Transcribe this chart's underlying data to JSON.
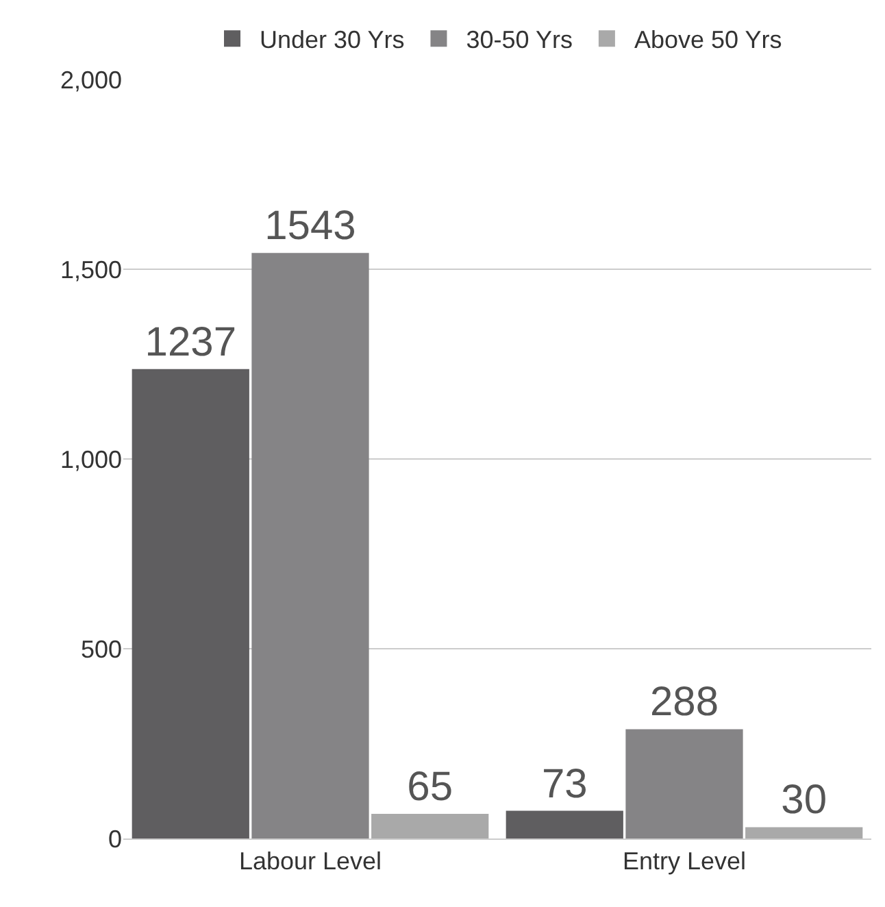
{
  "chart_data": {
    "type": "bar",
    "categories": [
      "Labour Level",
      "Entry Level"
    ],
    "series": [
      {
        "name": "Under 30 Yrs",
        "color": "#5f5e60",
        "values": [
          1237,
          73
        ]
      },
      {
        "name": "30-50 Yrs",
        "color": "#858486",
        "values": [
          1543,
          288
        ]
      },
      {
        "name": "Above 50 Yrs",
        "color": "#a9a9a9",
        "values": [
          65,
          30
        ]
      }
    ],
    "ylim": [
      0,
      2000
    ],
    "yticks": [
      {
        "value": 0,
        "label": "0"
      },
      {
        "value": 500,
        "label": "500"
      },
      {
        "value": 1000,
        "label": "1,000"
      },
      {
        "value": 1500,
        "label": "1,500"
      },
      {
        "value": 2000,
        "label": "2,000"
      }
    ],
    "grid": "y",
    "legend": "top",
    "data_labels": true
  }
}
